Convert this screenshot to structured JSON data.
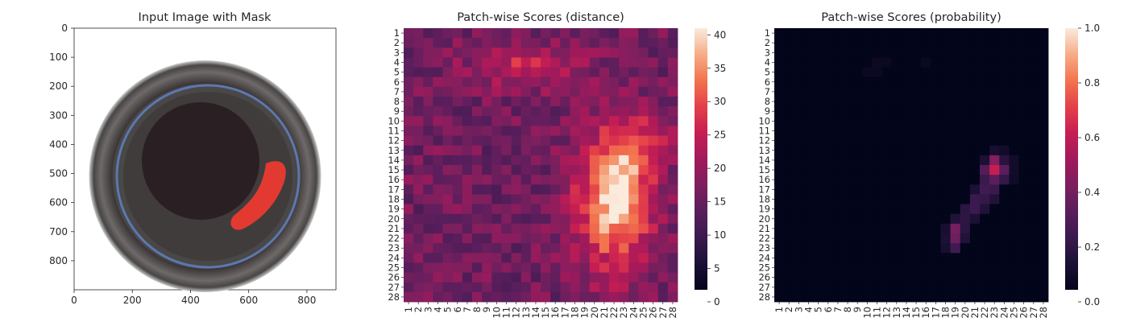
{
  "chart_data": [
    {
      "type": "image",
      "title": "Input Image with Mask",
      "x_ticks": [
        "0",
        "200",
        "400",
        "600",
        "800"
      ],
      "y_ticks": [
        "0",
        "100",
        "200",
        "300",
        "400",
        "500",
        "600",
        "700",
        "800"
      ],
      "xlim": [
        0,
        900
      ],
      "ylim": [
        900,
        0
      ],
      "image_description_colors": {
        "background": "#ffffff",
        "rim": "#4a4646",
        "inner": "#2a1f22",
        "blue_ring": "#5b78b0",
        "mask": "#e23a30"
      }
    },
    {
      "type": "heatmap",
      "title": "Patch-wise Scores (distance)",
      "rows": [
        "1",
        "2",
        "3",
        "4",
        "5",
        "6",
        "7",
        "8",
        "9",
        "10",
        "11",
        "12",
        "13",
        "14",
        "15",
        "16",
        "17",
        "18",
        "19",
        "20",
        "21",
        "22",
        "23",
        "24",
        "25",
        "26",
        "27",
        "28"
      ],
      "cols": [
        "1",
        "2",
        "3",
        "4",
        "5",
        "6",
        "7",
        "8",
        "9",
        "10",
        "11",
        "12",
        "13",
        "14",
        "15",
        "16",
        "17",
        "18",
        "19",
        "20",
        "21",
        "22",
        "23",
        "24",
        "25",
        "26",
        "27",
        "28"
      ],
      "colorbar_ticks": [
        "0",
        "5",
        "10",
        "15",
        "20",
        "25",
        "30",
        "35",
        "40"
      ],
      "vmin": 0,
      "vmax": 41,
      "colormap": "rocket",
      "hotspots": [
        {
          "row": 4.5,
          "col": 13,
          "sr": 1.5,
          "sc": 4,
          "amp": 10
        },
        {
          "row": 18,
          "col": 22,
          "sr": 5,
          "sc": 2.6,
          "amp": 24
        },
        {
          "row": 16,
          "col": 23,
          "sr": 2.5,
          "sc": 1.6,
          "amp": 6
        },
        {
          "row": 12,
          "col": 25,
          "sr": 1.8,
          "sc": 2,
          "amp": 8
        }
      ],
      "base_value": 15
    },
    {
      "type": "heatmap",
      "title": "Patch-wise Scores (probability)",
      "rows": [
        "1",
        "2",
        "3",
        "4",
        "5",
        "6",
        "7",
        "8",
        "9",
        "10",
        "11",
        "12",
        "13",
        "14",
        "15",
        "16",
        "17",
        "18",
        "19",
        "20",
        "21",
        "22",
        "23",
        "24",
        "25",
        "26",
        "27",
        "28"
      ],
      "cols": [
        "1",
        "2",
        "3",
        "4",
        "5",
        "6",
        "7",
        "8",
        "9",
        "10",
        "11",
        "12",
        "13",
        "14",
        "15",
        "16",
        "17",
        "18",
        "19",
        "20",
        "21",
        "22",
        "23",
        "24",
        "25",
        "26",
        "27",
        "28"
      ],
      "colorbar_ticks": [
        "0.0",
        "0.2",
        "0.4",
        "0.6",
        "0.8",
        "1.0"
      ],
      "vmin": 0,
      "vmax": 1,
      "colormap": "rocket",
      "cells": [
        {
          "row": 15,
          "col": 23,
          "value": 0.6
        },
        {
          "row": 14,
          "col": 23,
          "value": 0.42
        },
        {
          "row": 15,
          "col": 22,
          "value": 0.28
        },
        {
          "row": 15,
          "col": 24,
          "value": 0.3
        },
        {
          "row": 16,
          "col": 23,
          "value": 0.3
        },
        {
          "row": 16,
          "col": 22,
          "value": 0.2
        },
        {
          "row": 16,
          "col": 24,
          "value": 0.18
        },
        {
          "row": 17,
          "col": 22,
          "value": 0.22
        },
        {
          "row": 17,
          "col": 23,
          "value": 0.2
        },
        {
          "row": 17,
          "col": 21,
          "value": 0.1
        },
        {
          "row": 18,
          "col": 21,
          "value": 0.2
        },
        {
          "row": 18,
          "col": 22,
          "value": 0.18
        },
        {
          "row": 18,
          "col": 23,
          "value": 0.12
        },
        {
          "row": 19,
          "col": 20,
          "value": 0.15
        },
        {
          "row": 19,
          "col": 21,
          "value": 0.2
        },
        {
          "row": 19,
          "col": 22,
          "value": 0.12
        },
        {
          "row": 20,
          "col": 19,
          "value": 0.12
        },
        {
          "row": 20,
          "col": 20,
          "value": 0.16
        },
        {
          "row": 20,
          "col": 21,
          "value": 0.1
        },
        {
          "row": 21,
          "col": 19,
          "value": 0.38
        },
        {
          "row": 21,
          "col": 20,
          "value": 0.15
        },
        {
          "row": 21,
          "col": 18,
          "value": 0.08
        },
        {
          "row": 22,
          "col": 19,
          "value": 0.35
        },
        {
          "row": 22,
          "col": 18,
          "value": 0.1
        },
        {
          "row": 22,
          "col": 20,
          "value": 0.12
        },
        {
          "row": 23,
          "col": 19,
          "value": 0.22
        },
        {
          "row": 23,
          "col": 18,
          "value": 0.08
        },
        {
          "row": 14,
          "col": 24,
          "value": 0.14
        },
        {
          "row": 14,
          "col": 22,
          "value": 0.1
        },
        {
          "row": 13,
          "col": 23,
          "value": 0.08
        },
        {
          "row": 13,
          "col": 24,
          "value": 0.06
        },
        {
          "row": 14,
          "col": 25,
          "value": 0.06
        },
        {
          "row": 15,
          "col": 25,
          "value": 0.06
        },
        {
          "row": 16,
          "col": 25,
          "value": 0.05
        },
        {
          "row": 4,
          "col": 11,
          "value": 0.04
        },
        {
          "row": 5,
          "col": 11,
          "value": 0.03
        },
        {
          "row": 4,
          "col": 16,
          "value": 0.03
        },
        {
          "row": 5,
          "col": 10,
          "value": 0.03
        },
        {
          "row": 4,
          "col": 12,
          "value": 0.03
        }
      ]
    }
  ]
}
